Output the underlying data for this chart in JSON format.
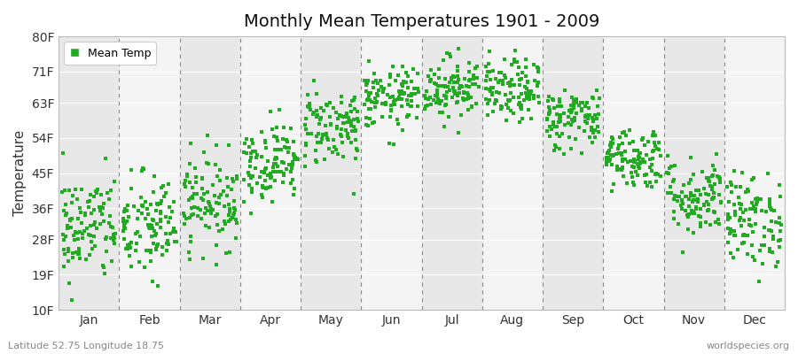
{
  "title": "Monthly Mean Temperatures 1901 - 2009",
  "ylabel": "Temperature",
  "xlabel_labels": [
    "Jan",
    "Feb",
    "Mar",
    "Apr",
    "May",
    "Jun",
    "Jul",
    "Aug",
    "Sep",
    "Oct",
    "Nov",
    "Dec"
  ],
  "ytick_labels": [
    "10F",
    "19F",
    "28F",
    "36F",
    "45F",
    "54F",
    "63F",
    "71F",
    "80F"
  ],
  "ytick_values": [
    10,
    19,
    28,
    36,
    45,
    54,
    63,
    71,
    80
  ],
  "ylim": [
    10,
    80
  ],
  "dot_color": "#22aa22",
  "background_color": "#ffffff",
  "plot_bg_color": "#ffffff",
  "band_color_odd": "#e8e8e8",
  "band_color_even": "#f4f4f4",
  "grid_color": "#888888",
  "footer_left": "Latitude 52.75 Longitude 18.75",
  "footer_right": "worldspecies.org",
  "legend_label": "Mean Temp",
  "n_years": 109,
  "month_means_F": [
    31,
    31,
    38,
    48,
    57,
    64,
    67,
    66,
    59,
    49,
    39,
    33
  ],
  "month_stds_F": [
    7,
    7,
    6,
    5,
    5,
    4,
    4,
    4,
    4,
    4,
    5,
    6
  ]
}
